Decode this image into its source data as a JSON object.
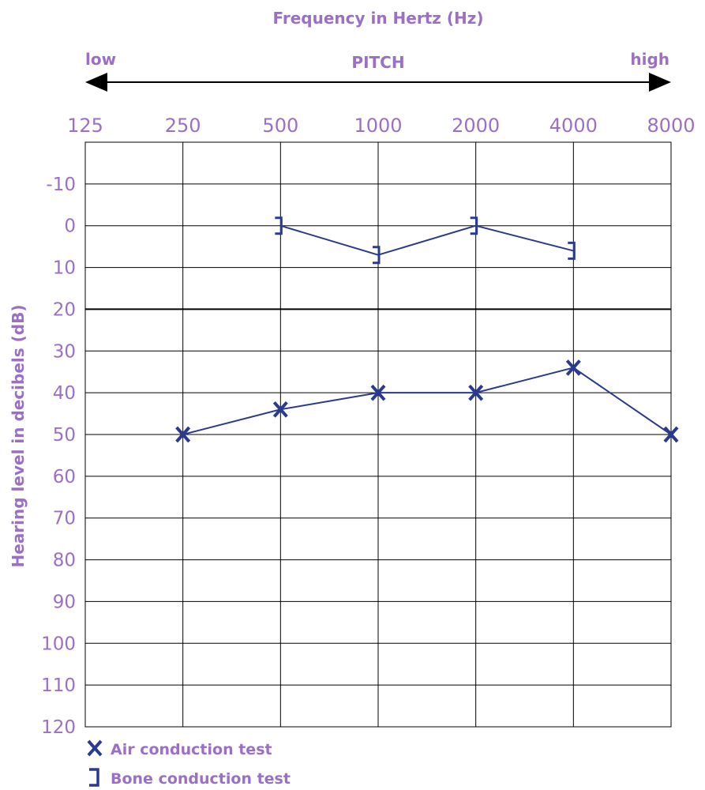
{
  "chart_data": {
    "type": "line",
    "title": "Frequency in Hertz (Hz)",
    "pitch_label": "PITCH",
    "pitch_low": "low",
    "pitch_high": "high",
    "ylabel": "Hearing level in decibels (dB)",
    "x_ticks": [
      "125",
      "250",
      "500",
      "1000",
      "2000",
      "4000",
      "8000"
    ],
    "y_ticks": [
      "-10",
      "0",
      "10",
      "20",
      "30",
      "40",
      "50",
      "60",
      "70",
      "80",
      "90",
      "100",
      "110",
      "120"
    ],
    "ylim": [
      -20,
      120
    ],
    "y_inverted": true,
    "grid": true,
    "emphasized_gridline_db": 20,
    "series": [
      {
        "name": "Air conduction test",
        "marker": "x",
        "x": [
          "250",
          "500",
          "1000",
          "2000",
          "4000",
          "8000"
        ],
        "values": [
          50,
          44,
          40,
          40,
          34,
          50
        ]
      },
      {
        "name": "Bone conduction test",
        "marker": "bracket",
        "x": [
          "500",
          "1000",
          "2000",
          "4000"
        ],
        "values": [
          0,
          7,
          0,
          6
        ]
      }
    ],
    "legend": [
      {
        "symbol": "X",
        "label": "Air conduction test"
      },
      {
        "symbol": "]",
        "label": "Bone conduction test"
      }
    ],
    "legend_position": "bottom-left"
  },
  "colors": {
    "text": "#9b6fc6",
    "series": "#2a3b8f",
    "grid": "#000000"
  }
}
